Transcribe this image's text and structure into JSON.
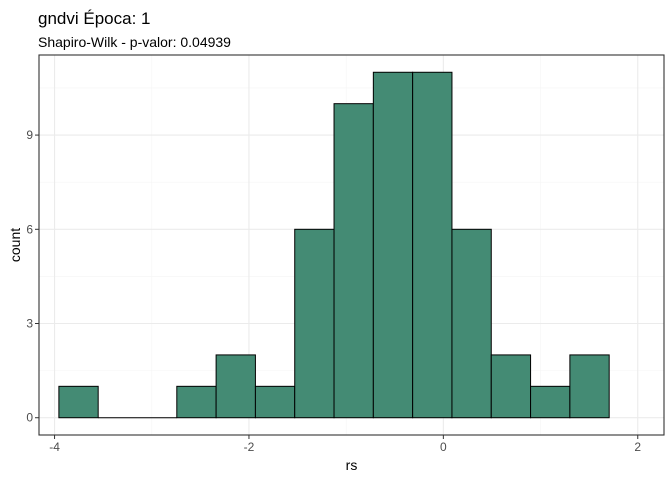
{
  "chart_data": {
    "type": "bar",
    "title": "gndvi  Época:  1",
    "subtitle": "Shapiro-Wilk - p-valor:  0.04939",
    "xlabel": "rs",
    "ylabel": "count",
    "bin_width": 0.4044,
    "bins": [
      {
        "start": -3.9555,
        "end": -3.5511,
        "count": 1
      },
      {
        "start": -3.5511,
        "end": -3.1467,
        "count": 0
      },
      {
        "start": -3.1467,
        "end": -2.7423,
        "count": 0
      },
      {
        "start": -2.7423,
        "end": -2.3379,
        "count": 1
      },
      {
        "start": -2.3379,
        "end": -1.9335,
        "count": 2
      },
      {
        "start": -1.9335,
        "end": -1.5291,
        "count": 1
      },
      {
        "start": -1.5291,
        "end": -1.1247,
        "count": 6
      },
      {
        "start": -1.1247,
        "end": -0.7203,
        "count": 10
      },
      {
        "start": -0.7203,
        "end": -0.3159,
        "count": 11
      },
      {
        "start": -0.3159,
        "end": 0.0885,
        "count": 11
      },
      {
        "start": 0.0885,
        "end": 0.4929,
        "count": 6
      },
      {
        "start": 0.4929,
        "end": 0.8973,
        "count": 2
      },
      {
        "start": 0.8973,
        "end": 1.3017,
        "count": 1
      },
      {
        "start": 1.3017,
        "end": 1.7061,
        "count": 2
      }
    ],
    "xlim": [
      -4.16,
      2.27
    ],
    "ylim": [
      -0.55,
      11.55
    ],
    "x_ticks": [
      -4,
      -2,
      0,
      2
    ],
    "x_tick_labels": [
      "-4",
      "-2",
      "0",
      "2"
    ],
    "y_ticks": [
      0,
      3,
      6,
      9
    ],
    "y_tick_labels": [
      "0",
      "3",
      "6",
      "9"
    ],
    "grid": true,
    "colors": {
      "bar_fill": "#448b74",
      "bar_stroke": "#000000",
      "grid_major": "#ebebeb",
      "grid_minor": "#f5f5f5",
      "panel_border": "#333333",
      "tick_text": "#4d4d4d"
    }
  }
}
